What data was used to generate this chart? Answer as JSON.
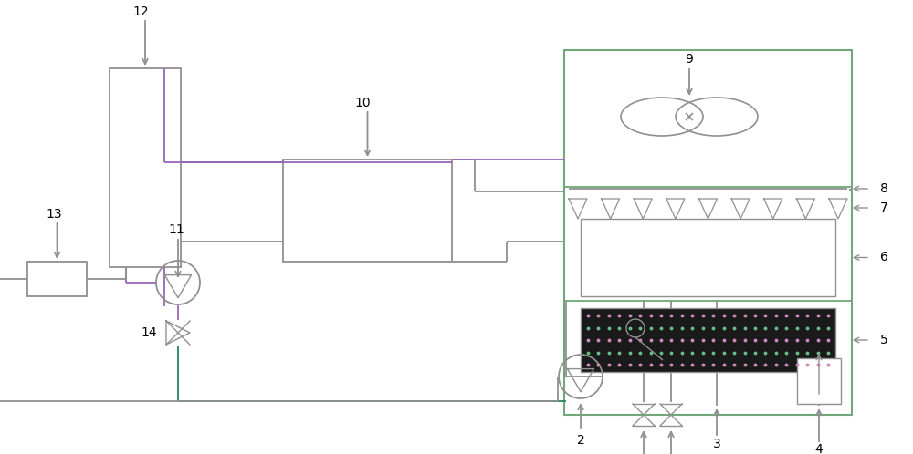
{
  "bg": "#ffffff",
  "lc": "#909090",
  "gc": "#70a878",
  "pc": "#9966bb",
  "dark": "#1a1a1a",
  "fig_w": 10.0,
  "fig_h": 4.98,
  "dpi": 100
}
